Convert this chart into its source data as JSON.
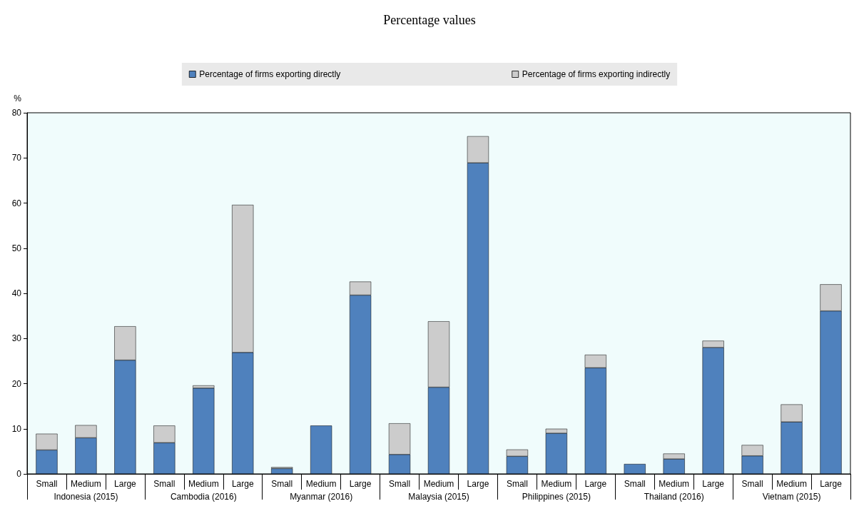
{
  "chart_data": {
    "type": "bar",
    "title": "Percentage values",
    "ylabel": "%",
    "categories": [
      "Small",
      "Medium",
      "Large",
      "Small",
      "Medium",
      "Large",
      "Small",
      "Medium",
      "Large",
      "Small",
      "Medium",
      "Large",
      "Small",
      "Medium",
      "Large",
      "Small",
      "Medium",
      "Large",
      "Small",
      "Medium",
      "Large"
    ],
    "annotations": [
      "Indonesia (2015)",
      "Cambodia (2016)",
      "Myanmar (2016)",
      "Malaysia (2015)",
      "Philippines (2015)",
      "Thailand (2016)",
      "Vietnam (2015)"
    ],
    "series": [
      {
        "name": "Percentage of firms exporting directly",
        "color": "#4f81bd",
        "values": [
          5.3,
          8.0,
          25.2,
          6.9,
          19.0,
          26.9,
          1.2,
          10.7,
          39.6,
          4.3,
          19.2,
          68.9,
          3.9,
          9.0,
          23.5,
          2.2,
          3.3,
          28.0,
          4.0,
          11.5,
          36.1
        ]
      },
      {
        "name": "Percentage of firms exporting indirectly",
        "color": "#cccccc",
        "values": [
          3.6,
          2.8,
          7.5,
          3.8,
          0.6,
          32.7,
          0.3,
          null,
          3.0,
          6.9,
          14.6,
          5.9,
          1.5,
          1.0,
          2.9,
          null,
          1.2,
          1.5,
          2.4,
          3.9,
          5.9
        ]
      }
    ],
    "stacked": true,
    "ylim": [
      0,
      80
    ],
    "yticks": [
      0,
      10,
      20,
      30,
      40,
      50,
      60,
      70,
      80
    ],
    "grid": false,
    "legend": "top"
  }
}
